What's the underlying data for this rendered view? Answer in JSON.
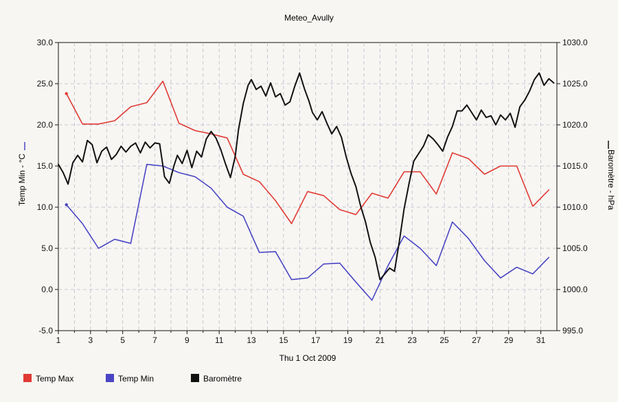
{
  "chart_data": {
    "type": "line",
    "title": "Meteo_Avully",
    "xlabel": "Thu 1 Oct 2009",
    "ylabel_left": "Temp Min - °C",
    "ylabel_right": "Baromètre - hPa",
    "grid": true,
    "legend_position": "bottom",
    "x_ticks": [
      "1",
      "3",
      "5",
      "7",
      "9",
      "11",
      "13",
      "15",
      "17",
      "19",
      "21",
      "23",
      "25",
      "27",
      "29",
      "31"
    ],
    "x_range": [
      1,
      32
    ],
    "y_left": {
      "range": [
        -5,
        30
      ],
      "ticks": [
        "-5.0",
        "0.0",
        "5.0",
        "10.0",
        "15.0",
        "20.0",
        "25.0",
        "30.0"
      ]
    },
    "y_right": {
      "range": [
        995,
        1030
      ],
      "ticks": [
        "995.0",
        "1000.0",
        "1005.0",
        "1010.0",
        "1015.0",
        "1020.0",
        "1025.0",
        "1030.0"
      ]
    },
    "series": [
      {
        "name": "Temp Max",
        "axis": "left",
        "color": "#e03a33",
        "x": [
          1.5,
          2.5,
          3.5,
          4.5,
          5.5,
          6.5,
          7.5,
          8.5,
          9.5,
          10.5,
          11.5,
          12.5,
          13.5,
          14.5,
          15.5,
          16.5,
          17.5,
          18.5,
          19.5,
          20.5,
          21.5,
          22.5,
          23.5,
          24.5,
          25.5,
          26.5,
          27.5,
          28.5,
          29.5,
          30.5,
          31.5
        ],
        "values": [
          23.8,
          20.1,
          20.1,
          20.5,
          22.2,
          22.7,
          25.3,
          20.2,
          19.3,
          18.9,
          18.4,
          14.0,
          13.1,
          10.8,
          8.0,
          11.9,
          11.4,
          9.7,
          9.1,
          11.7,
          11.1,
          14.3,
          14.3,
          11.6,
          16.6,
          15.9,
          14.0,
          15.0,
          15.0,
          10.1,
          12.1
        ]
      },
      {
        "name": "Temp Min",
        "axis": "left",
        "color": "#4a45c4",
        "x": [
          1.5,
          2.5,
          3.5,
          4.5,
          5.5,
          6.5,
          7.5,
          8.5,
          9.5,
          10.5,
          11.5,
          12.5,
          13.5,
          14.5,
          15.5,
          16.5,
          17.5,
          18.5,
          19.5,
          20.5,
          21.5,
          22.5,
          23.5,
          24.5,
          25.5,
          26.5,
          27.5,
          28.5,
          29.5,
          30.5,
          31.5
        ],
        "values": [
          10.3,
          8.0,
          5.0,
          6.1,
          5.6,
          15.2,
          15.0,
          14.2,
          13.7,
          12.3,
          10.0,
          8.9,
          4.5,
          4.6,
          1.2,
          1.4,
          3.1,
          3.2,
          0.9,
          -1.3,
          2.9,
          6.5,
          5.0,
          2.9,
          8.2,
          6.2,
          3.5,
          1.4,
          2.7,
          1.9,
          3.9
        ]
      },
      {
        "name": "Baromètre",
        "axis": "right",
        "color": "#111111",
        "x": [
          1.0,
          1.3,
          1.6,
          1.9,
          2.2,
          2.5,
          2.8,
          3.1,
          3.4,
          3.7,
          4.0,
          4.3,
          4.6,
          4.9,
          5.2,
          5.5,
          5.8,
          6.1,
          6.4,
          6.7,
          7.0,
          7.3,
          7.6,
          7.9,
          8.2,
          8.4,
          8.7,
          9.0,
          9.3,
          9.6,
          9.9,
          10.2,
          10.5,
          10.8,
          11.1,
          11.4,
          11.7,
          12.0,
          12.2,
          12.5,
          12.8,
          13.0,
          13.3,
          13.6,
          13.9,
          14.2,
          14.5,
          14.8,
          15.1,
          15.4,
          15.7,
          16.0,
          16.3,
          16.6,
          16.8,
          17.1,
          17.4,
          17.7,
          18.0,
          18.3,
          18.6,
          18.9,
          19.2,
          19.5,
          19.8,
          20.1,
          20.4,
          20.7,
          21.0,
          21.3,
          21.6,
          21.9,
          22.2,
          22.5,
          22.8,
          23.1,
          23.4,
          23.7,
          24.0,
          24.3,
          24.6,
          24.9,
          25.2,
          25.5,
          25.8,
          26.1,
          26.4,
          26.7,
          27.0,
          27.3,
          27.6,
          27.9,
          28.2,
          28.5,
          28.8,
          29.1,
          29.4,
          29.7,
          30.0,
          30.3,
          30.6,
          30.9,
          31.2,
          31.5,
          31.8
        ],
        "values": [
          1015.2,
          1014.2,
          1012.8,
          1015.4,
          1016.3,
          1015.5,
          1018.1,
          1017.6,
          1015.4,
          1016.8,
          1017.3,
          1015.8,
          1016.4,
          1017.4,
          1016.7,
          1017.4,
          1017.8,
          1016.6,
          1017.9,
          1017.2,
          1017.8,
          1017.7,
          1013.7,
          1012.9,
          1015.1,
          1016.3,
          1015.3,
          1016.9,
          1014.8,
          1016.8,
          1016.1,
          1018.3,
          1019.2,
          1018.4,
          1017.0,
          1015.2,
          1013.6,
          1016.2,
          1019.4,
          1022.6,
          1024.8,
          1025.5,
          1024.3,
          1024.7,
          1023.5,
          1025.1,
          1023.4,
          1023.8,
          1022.4,
          1022.8,
          1024.7,
          1026.3,
          1024.4,
          1022.8,
          1021.5,
          1020.6,
          1021.6,
          1020.2,
          1018.9,
          1019.8,
          1018.5,
          1016.1,
          1014.1,
          1012.5,
          1010.1,
          1008.2,
          1005.7,
          1003.9,
          1001.2,
          1001.9,
          1002.6,
          1002.2,
          1005.8,
          1009.8,
          1012.8,
          1015.6,
          1016.5,
          1017.4,
          1018.8,
          1018.3,
          1017.6,
          1016.8,
          1018.5,
          1019.8,
          1021.7,
          1021.7,
          1022.4,
          1021.5,
          1020.6,
          1021.8,
          1020.9,
          1021.1,
          1020.0,
          1021.2,
          1020.6,
          1021.4,
          1019.7,
          1022.2,
          1023.0,
          1024.1,
          1025.5,
          1026.3,
          1024.8,
          1025.6,
          1025.1
        ]
      }
    ]
  }
}
